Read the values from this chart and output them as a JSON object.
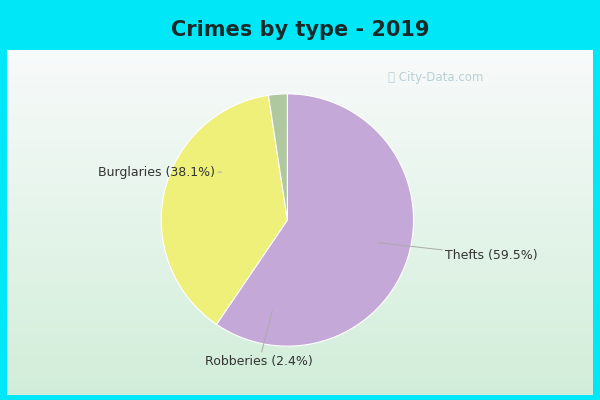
{
  "title": "Crimes by type - 2019",
  "slices": [
    {
      "label": "Thefts",
      "pct": 59.5,
      "color": "#c4a8d8"
    },
    {
      "label": "Burglaries",
      "pct": 38.1,
      "color": "#eef07a"
    },
    {
      "label": "Robberies",
      "pct": 2.4,
      "color": "#b0c8a0"
    }
  ],
  "title_fontsize": 15,
  "title_color": "#1a2a2a",
  "label_fontsize": 9,
  "watermark": "ⓘ City-Data.com",
  "top_bar_color": "#00e8f8",
  "border_width": 7,
  "bg_colors": [
    "#d8ede6",
    "#e0eef4",
    "#d0e8e0",
    "#ddf0e8"
  ],
  "startangle": 90
}
